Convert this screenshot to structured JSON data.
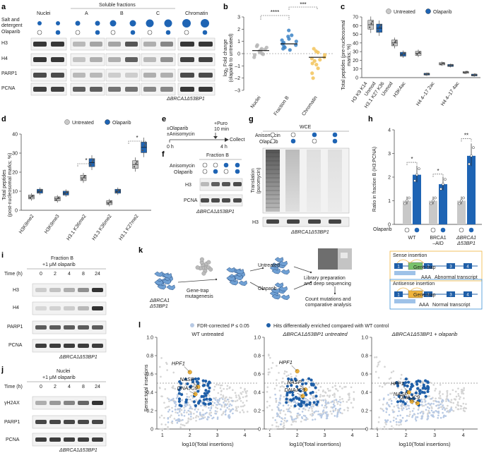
{
  "colors": {
    "untreated": "#c8c8c8",
    "olaparib": "#1e64b4",
    "chromatin": "#f2c35a",
    "fractionB": "#3b82c6",
    "nuclei": "#b5b5b5",
    "fdr": "#b7c9e4",
    "bg_point": "#d4d4d4",
    "highlight": "#f0b43c",
    "hit": "#1f5fa8"
  },
  "panel_labels": {
    "a": "a",
    "b": "b",
    "c": "c",
    "d": "d",
    "e": "e",
    "f": "f",
    "g": "g",
    "h": "h",
    "i": "i",
    "j": "j",
    "k": "k",
    "l": "l"
  },
  "a": {
    "row_salt": "Salt and",
    "row_salt2": "detergent",
    "row_olaparib": "Olaparib",
    "groups": [
      "Nuclei",
      "A",
      "B",
      "C",
      "Chromatin"
    ],
    "soluble": "Soluble fractions",
    "bands": [
      "H3",
      "H4",
      "PARP1",
      "PCNA"
    ],
    "footer": "ΔBRCA1Δ53BP1"
  },
  "b": {
    "ylabel1": "log",
    "ylabel_sub": "2",
    "ylabel2": " Fold change",
    "ylabel3": "(olaparib to untreated)",
    "yticks": [
      "3",
      "2",
      "1",
      "0",
      "–1",
      "–2",
      "–3"
    ],
    "xcats": [
      "Nuclei",
      "Fraction B",
      "Chromatin"
    ],
    "sig1": "****",
    "sig2": "***"
  },
  "c": {
    "legend_untreated": "Untreated",
    "legend_olaparib": "Olaparib",
    "ylabel1": "Total peptides (pre-nucleosomal",
    "ylabel2": "marks; %)",
    "yticks": [
      "70",
      "60",
      "50",
      "40",
      "30",
      "20",
      "10",
      "0"
    ],
    "xcats": [
      "H3 K9 K14",
      "Unmod",
      "H3.1 K27 K36",
      "Unmod",
      "H3K4ac",
      "H4 4–17 2ac",
      "H4 4–17 4ac"
    ]
  },
  "d": {
    "legend_untreated": "Untreated",
    "legend_olaparib": "Olaparib",
    "ylabel1": "Total peptides",
    "ylabel2": "(post-nucleosomal marks; %)",
    "yticks": [
      "40",
      "30",
      "20",
      "10",
      "0"
    ],
    "xcats": [
      "H3K9me2",
      "H3K9me3",
      "H3.1 K36me2",
      "H3.3 K36me2",
      "H3.1 K27me2"
    ],
    "star": "*"
  },
  "e": {
    "l1": "±Olaparib",
    "l2": "±Anisomycin",
    "puro": "+Puro",
    "min": "10 min",
    "collect": "Collect",
    "t0": "0 h",
    "t4": "4 h"
  },
  "f": {
    "title": "Fraction B",
    "r1": "Anisomycin",
    "r2": "Olaparib",
    "bands": [
      "H3",
      "PCNA"
    ],
    "footer": "ΔBRCA1Δ53BP1"
  },
  "g": {
    "title": "WCE",
    "r1": "Anisomycin",
    "r2": "Olaparib",
    "ylabel1": "Translation",
    "ylabel2": "(puromycin)",
    "band": "H3",
    "footer": "ΔBRCA1Δ53BP1"
  },
  "h": {
    "ylabel": "Ratio in fraction B (H3:PCNA)",
    "yticks": [
      "4",
      "3",
      "2",
      "1",
      "0"
    ],
    "olaparib": "Olaparib",
    "groups": [
      "WT",
      "BRCA1",
      "–AID",
      "ΔBRCA1",
      "Δ53BP1"
    ],
    "sig": [
      "*",
      "*",
      "**"
    ]
  },
  "i": {
    "title1": "Fraction B",
    "title2": "+1 μM olaparib",
    "time": "Time (h)",
    "times": [
      "0",
      "2",
      "4",
      "8",
      "24"
    ],
    "bands": [
      "H3",
      "H4",
      "PARP1",
      "PCNA"
    ],
    "footer": "ΔBRCA1Δ53BP1"
  },
  "j": {
    "title1": "Nuclei",
    "title2": "+1 μM olaparib",
    "time": "Time (h)",
    "times": [
      "0",
      "2",
      "4",
      "8",
      "24"
    ],
    "bands": [
      "γH2AX",
      "PARP1",
      "PCNA"
    ],
    "footer": "ΔBRCA1Δ53BP1"
  },
  "k": {
    "cell1": "ΔBRCA1",
    "cell2": "Δ53BP1",
    "genetrap1": "Gene-trap",
    "genetrap2": "mutagenesis",
    "untreated": "Untreated",
    "olaparib": "Olaparib",
    "lib1": "Library preparation",
    "lib2": "and deep sequencing",
    "count1": "Count mutations and",
    "count2": "comparative analysis",
    "sense": "Sense insertion",
    "antisense": "Antisense insertion",
    "abnormal": "Abnormal transcript",
    "normal": "Normal transcript",
    "aaa": "AAA",
    "gtrap": "Gene-trap"
  },
  "l": {
    "legend_fdr": "FDR-corrected P ≤ 0.05",
    "legend_hits": "Hits differentially enriched compared with WT control",
    "titles": [
      "WT untreated",
      "ΔBRCA1Δ53BP1 untreated",
      "ΔBRCA1Δ53BP1 + olaparib"
    ],
    "ylabel": "Sense:total insertions",
    "xlabel": "log10(Total insertions)",
    "yticks": [
      "1.0",
      "0.8",
      "0.6",
      "0.4",
      "0.2",
      "0"
    ],
    "xticks": [
      "1",
      "2",
      "3",
      "4"
    ],
    "genes": [
      "HPF1",
      "NASP",
      "DNAJC9"
    ]
  },
  "chart_data": [
    {
      "type": "scatter",
      "title": "Fold change (olaparib to untreated)",
      "categories": [
        "Nuclei",
        "Fraction B",
        "Chromatin"
      ],
      "series": [
        {
          "name": "Nuclei",
          "values": [
            0.2,
            0.4,
            -0.1,
            0.6,
            0.1,
            0.3,
            -0.3,
            0.5,
            0.0,
            0.2,
            0.7,
            0.35,
            -0.05
          ]
        },
        {
          "name": "Fraction B",
          "values": [
            0.8,
            1.2,
            0.5,
            1.5,
            0.9,
            0.3,
            1.9,
            0.6,
            1.1,
            0.7,
            1.0,
            0.4,
            1.4
          ]
        },
        {
          "name": "Chromatin",
          "values": [
            -0.3,
            -0.8,
            0.2,
            -1.2,
            -0.5,
            0.4,
            -1.6,
            -0.1,
            -0.9,
            -2.0,
            0.1,
            -0.6,
            -0.4
          ]
        }
      ],
      "medians": [
        0.25,
        0.8,
        -0.3
      ],
      "ylim": [
        -3,
        3
      ]
    },
    {
      "type": "box",
      "title": "Total peptides (pre-nucleosomal marks; %)",
      "categories": [
        "H3 K9 K14 Unmod",
        "H3.1 K27 K36 Unmod",
        "H3K4ac",
        "H4 4–17 2ac",
        "H4 4–17 4ac"
      ],
      "series": [
        {
          "name": "Untreated",
          "values": [
            61,
            40,
            28,
            16,
            6
          ]
        },
        {
          "name": "Olaparib",
          "values": [
            57,
            27,
            4,
            14,
            3
          ]
        }
      ],
      "ylim": [
        0,
        70
      ]
    },
    {
      "type": "box",
      "title": "Total peptides (post-nucleosomal marks; %)",
      "categories": [
        "H3K9me2",
        "H3K9me3",
        "H3.1 K36me2",
        "H3.3 K36me2",
        "H3.1 K27me2"
      ],
      "series": [
        {
          "name": "Untreated",
          "values": [
            7,
            6,
            17,
            4,
            24
          ]
        },
        {
          "name": "Olaparib",
          "values": [
            10,
            9,
            25,
            10,
            33
          ]
        }
      ],
      "ylim": [
        0,
        40
      ]
    },
    {
      "type": "bar",
      "title": "Ratio in fraction B (H3:PCNA)",
      "categories": [
        "WT",
        "BRCA1–AID",
        "ΔBRCA1Δ53BP1"
      ],
      "series": [
        {
          "name": "Untreated",
          "values": [
            1,
            1,
            1
          ]
        },
        {
          "name": "Olaparib",
          "values": [
            2.1,
            1.7,
            2.9
          ]
        }
      ],
      "ylim": [
        0,
        4
      ]
    },
    {
      "type": "scatter",
      "title": "Gene-trap screens",
      "xlabel": "log10(Total insertions)",
      "ylabel": "Sense:total insertions",
      "xlim": [
        0.8,
        4.5
      ],
      "ylim": [
        0,
        1
      ],
      "threshold": 0.5,
      "series": [
        {
          "name": "HPF1",
          "x": [
            2.0,
            2.0,
            2.1
          ],
          "y": [
            0.62,
            0.63,
            0.4
          ]
        },
        {
          "name": "NASP",
          "x": [
            2.3,
            2.3,
            2.2
          ],
          "y": [
            0.46,
            0.43,
            0.3
          ]
        },
        {
          "name": "DNAJC9",
          "x": [
            2.2,
            2.2,
            2.4
          ],
          "y": [
            0.38,
            0.36,
            0.28
          ]
        }
      ]
    }
  ]
}
